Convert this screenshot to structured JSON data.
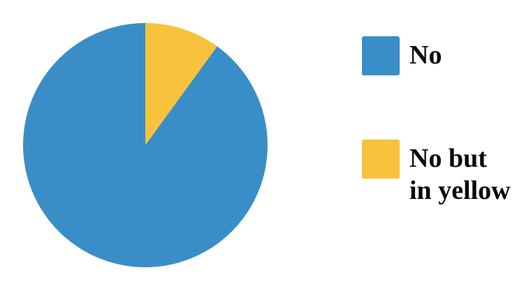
{
  "chart_data": {
    "type": "pie",
    "title": "",
    "categories": [
      "No",
      "No but\nin yellow"
    ],
    "values": [
      90,
      10
    ],
    "colors": [
      "#3a8ec7",
      "#f9c23c"
    ],
    "start_angle_deg": 0,
    "direction": "clockwise",
    "legend_position": "right"
  }
}
